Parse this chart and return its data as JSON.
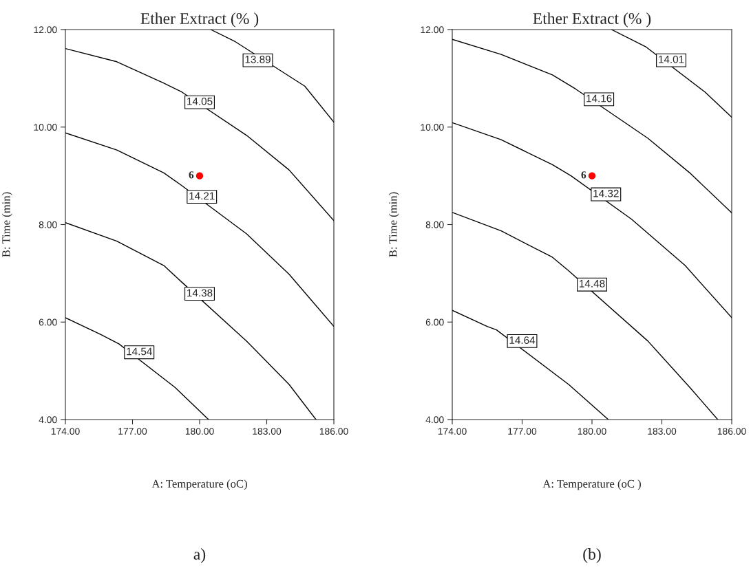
{
  "chart_data": [
    {
      "type": "line",
      "title": "Ether Extract (% )",
      "xlabel": "A: Temperature (oC)",
      "ylabel": "B: Time (min)",
      "xlim": [
        174,
        186
      ],
      "ylim": [
        4,
        12
      ],
      "xticks": [
        {
          "value": 174,
          "label": "174.00"
        },
        {
          "value": 177,
          "label": "177.00"
        },
        {
          "value": 180,
          "label": "180.00"
        },
        {
          "value": 183,
          "label": "183.00"
        },
        {
          "value": 186,
          "label": "186.00"
        }
      ],
      "yticks": [
        {
          "value": 4,
          "label": "4.00"
        },
        {
          "value": 6,
          "label": "6.00"
        },
        {
          "value": 8,
          "label": "8.00"
        },
        {
          "value": 10,
          "label": "10.00"
        },
        {
          "value": 12,
          "label": "12.00"
        }
      ],
      "grid": false,
      "series": [
        {
          "color": "#000000",
          "x": [
            180.5,
            181.6,
            184.7,
            186
          ],
          "values": [
            12,
            11.75,
            10.84,
            10.1
          ]
        },
        {
          "color": "#000000",
          "x": [
            174,
            176.3,
            178.4,
            179.2,
            182.1,
            184.0,
            186
          ],
          "values": [
            11.61,
            11.34,
            10.9,
            10.72,
            9.83,
            9.12,
            8.08
          ]
        },
        {
          "color": "#000000",
          "x": [
            174,
            176.3,
            178.4,
            179.2,
            182.1,
            184.0,
            186
          ],
          "values": [
            9.88,
            9.53,
            9.06,
            8.8,
            7.81,
            6.98,
            5.91
          ]
        },
        {
          "color": "#000000",
          "x": [
            174,
            176.3,
            178.4,
            179.2,
            182.1,
            184.0,
            185.2
          ],
          "values": [
            8.04,
            7.66,
            7.16,
            6.82,
            5.61,
            4.72,
            4
          ]
        },
        {
          "color": "#000000",
          "x": [
            174,
            175.6,
            176.4,
            178.9,
            180.4
          ],
          "values": [
            6.09,
            5.74,
            5.55,
            4.66,
            4
          ]
        },
        {
          "type": "scatter",
          "color": "#ff0000",
          "x": [
            180
          ],
          "values": [
            9
          ]
        }
      ],
      "annotations": [
        {
          "text": "6",
          "x": 180,
          "y": 9
        },
        {
          "text": "13.89",
          "x": 182.6,
          "y": 11.37
        },
        {
          "text": "14.05",
          "x": 180,
          "y": 10.51
        },
        {
          "text": "14.21",
          "x": 180.1,
          "y": 8.57
        },
        {
          "text": "14.38",
          "x": 180,
          "y": 6.58
        },
        {
          "text": "14.54",
          "x": 177.3,
          "y": 5.38
        },
        "a)"
      ]
    },
    {
      "type": "line",
      "title": "Ether Extract (% )",
      "xlabel": "A: Temperature (oC )",
      "ylabel": "B: Time (min)",
      "xlim": [
        174,
        186
      ],
      "ylim": [
        4,
        12
      ],
      "xticks": [
        {
          "value": 174,
          "label": "174.00"
        },
        {
          "value": 177,
          "label": "177.00"
        },
        {
          "value": 180,
          "label": "180.00"
        },
        {
          "value": 183,
          "label": "183.00"
        },
        {
          "value": 186,
          "label": "186.00"
        }
      ],
      "yticks": [
        {
          "value": 4,
          "label": "4.00"
        },
        {
          "value": 6,
          "label": "6.00"
        },
        {
          "value": 8,
          "label": "8.00"
        },
        {
          "value": 10,
          "label": "10.00"
        },
        {
          "value": 12,
          "label": "12.00"
        }
      ],
      "grid": false,
      "series": [
        {
          "color": "#000000",
          "x": [
            180.84,
            182.3,
            184.85,
            186
          ],
          "values": [
            12,
            11.65,
            10.72,
            10.2
          ]
        },
        {
          "color": "#000000",
          "x": [
            174,
            176.1,
            178.3,
            179.3,
            182.4,
            184.2,
            186
          ],
          "values": [
            11.8,
            11.49,
            11.07,
            10.78,
            9.77,
            9.06,
            8.24
          ]
        },
        {
          "color": "#000000",
          "x": [
            174,
            176.1,
            178.3,
            179.1,
            181.7,
            184,
            186
          ],
          "values": [
            10.09,
            9.74,
            9.23,
            9.0,
            8.11,
            7.16,
            6.09
          ]
        },
        {
          "color": "#000000",
          "x": [
            174,
            176.1,
            178.3,
            179.0,
            182.4,
            184.2,
            185.4
          ],
          "values": [
            8.25,
            7.87,
            7.33,
            7.05,
            5.61,
            4.66,
            4
          ]
        },
        {
          "color": "#000000",
          "x": [
            174,
            175.5,
            175.9,
            179,
            180.7
          ],
          "values": [
            6.24,
            5.91,
            5.84,
            4.72,
            4
          ]
        },
        {
          "type": "scatter",
          "color": "#ff0000",
          "x": [
            180
          ],
          "values": [
            9
          ]
        }
      ],
      "annotations": [
        {
          "text": "6",
          "x": 180,
          "y": 9
        },
        {
          "text": "14.01",
          "x": 183.4,
          "y": 11.37
        },
        {
          "text": "14.16",
          "x": 180.3,
          "y": 10.57
        },
        {
          "text": "14.32",
          "x": 180.6,
          "y": 8.62
        },
        {
          "text": "14.48",
          "x": 180,
          "y": 6.77
        },
        {
          "text": "14.64",
          "x": 177,
          "y": 5.61
        },
        "(b)"
      ]
    }
  ]
}
